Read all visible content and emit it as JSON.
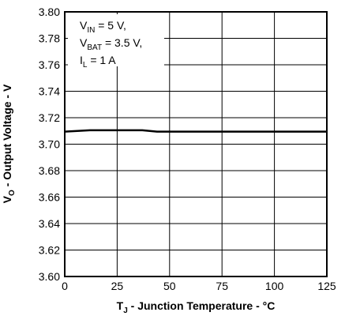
{
  "chart_data": {
    "type": "line",
    "xlabel": {
      "main": "T",
      "sub": "J",
      "rest": " - Junction Temperature - °C"
    },
    "ylabel": {
      "main": "V",
      "sub": "O",
      "rest": " - Output Voltage - V"
    },
    "xlim": [
      0,
      125
    ],
    "ylim": [
      3.6,
      3.8
    ],
    "x_ticks": [
      "0",
      "25",
      "50",
      "75",
      "100",
      "125"
    ],
    "x_tick_values": [
      0,
      25,
      50,
      75,
      100,
      125
    ],
    "y_ticks": [
      "3.60",
      "3.62",
      "3.64",
      "3.66",
      "3.68",
      "3.70",
      "3.72",
      "3.74",
      "3.76",
      "3.78",
      "3.80"
    ],
    "y_tick_values": [
      3.6,
      3.62,
      3.64,
      3.66,
      3.68,
      3.7,
      3.72,
      3.74,
      3.76,
      3.78,
      3.8
    ],
    "grid": true,
    "annotation": [
      {
        "main": "V",
        "sub": "IN",
        "rest": " = 5 V,"
      },
      {
        "main": "V",
        "sub": "BAT",
        "rest": " = 3.5 V,"
      },
      {
        "main": "I",
        "sub": "L",
        "rest": " = 1 A"
      }
    ],
    "series": [
      {
        "x": [
          0,
          12,
          25,
          37,
          44,
          50,
          75,
          100,
          125
        ],
        "y": [
          3.7095,
          3.7105,
          3.7105,
          3.7105,
          3.7095,
          3.7095,
          3.7095,
          3.7095,
          3.7095
        ]
      }
    ]
  }
}
